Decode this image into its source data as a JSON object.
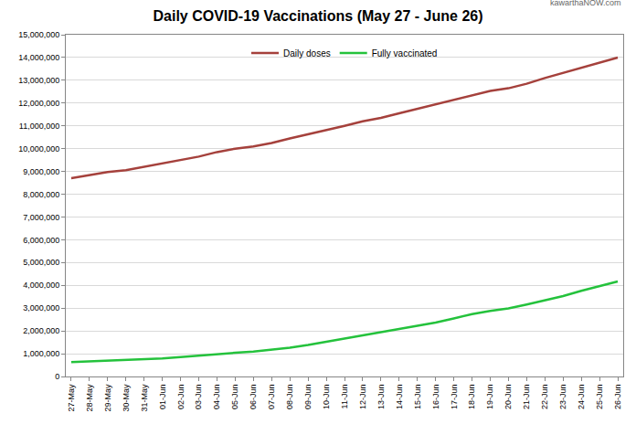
{
  "chart_data": {
    "type": "line",
    "title": "Daily COVID-19 Vaccinations (May 27 - June 26)",
    "annotations": [
      "kawarthaNOW.com"
    ],
    "categories": [
      "27-May",
      "28-May",
      "29-May",
      "30-May",
      "31-May",
      "01-Jun",
      "02-Jun",
      "03-Jun",
      "04-Jun",
      "05-Jun",
      "06-Jun",
      "07-Jun",
      "08-Jun",
      "09-Jun",
      "10-Jun",
      "11-Jun",
      "12-Jun",
      "13-Jun",
      "14-Jun",
      "15-Jun",
      "16-Jun",
      "17-Jun",
      "18-Jun",
      "19-Jun",
      "20-Jun",
      "21-Jun",
      "22-Jun",
      "23-Jun",
      "24-Jun",
      "25-Jun",
      "26-Jun"
    ],
    "series": [
      {
        "name": "Daily doses",
        "color": "#a5413c",
        "values": [
          8700000,
          8850000,
          8970000,
          9050000,
          9200000,
          9350000,
          9500000,
          9650000,
          9850000,
          10000000,
          10100000,
          10250000,
          10450000,
          10630000,
          10800000,
          11000000,
          11200000,
          11350000,
          11550000,
          11750000,
          11950000,
          12150000,
          12350000,
          12530000,
          12650000,
          12850000,
          13100000,
          13330000,
          13550000,
          13800000,
          14000000
        ]
      },
      {
        "name": "Fully vaccinated",
        "color": "#24c23c",
        "values": [
          630000,
          660000,
          690000,
          700000,
          730000,
          790000,
          850000,
          920000,
          980000,
          1040000,
          1090000,
          1170000,
          1260000,
          1380000,
          1520000,
          1680000,
          1810000,
          1930000,
          2070000,
          2210000,
          2370000,
          2550000,
          2740000,
          2880000,
          2990000,
          3160000,
          3340000,
          3530000,
          3760000,
          3980000,
          4170000
        ]
      }
    ],
    "ylim": [
      0,
      15000000
    ],
    "yticks": [
      0,
      {
        "value": 1000000,
        "label": "1,000,000"
      },
      {
        "value": 2000000,
        "label": "2,000,000"
      },
      {
        "value": 3000000,
        "label": "3,000,000"
      },
      {
        "value": 4000000,
        "label": "4,000,000"
      },
      {
        "value": 5000000,
        "label": "5,000,000"
      },
      {
        "value": 6000000,
        "label": "6,000,000"
      },
      {
        "value": 7000000,
        "label": "7,000,000"
      },
      {
        "value": 8000000,
        "label": "8,000,000"
      },
      {
        "value": 9000000,
        "label": "9,000,000"
      },
      {
        "value": 10000000,
        "label": "10,000,000"
      },
      {
        "value": 11000000,
        "label": "11,000,000"
      },
      {
        "value": 12000000,
        "label": "12,000,000"
      },
      {
        "value": 13000000,
        "label": "13,000,000"
      },
      {
        "value": 14000000,
        "label": "14,000,000"
      },
      {
        "value": 15000000,
        "label": "15,000,000"
      }
    ],
    "grid": true,
    "legend": "top"
  }
}
